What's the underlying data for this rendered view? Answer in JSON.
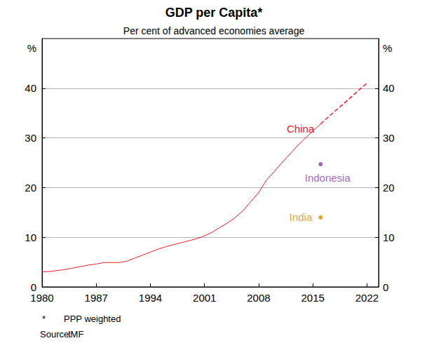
{
  "chart_data": {
    "type": "line",
    "title": "GDP per Capita*",
    "subtitle": "Per cent of advanced economies average",
    "y_label": "%",
    "y2_label": "%",
    "x": [
      1980,
      1981,
      1982,
      1983,
      1984,
      1985,
      1986,
      1987,
      1988,
      1989,
      1990,
      1991,
      1992,
      1993,
      1994,
      1995,
      1996,
      1997,
      1998,
      1999,
      2000,
      2001,
      2002,
      2003,
      2004,
      2005,
      2006,
      2007,
      2008,
      2009,
      2010,
      2011,
      2012,
      2013,
      2014,
      2015,
      2016,
      2017,
      2018,
      2019,
      2020,
      2021,
      2022
    ],
    "series": [
      {
        "name": "China",
        "type": "line",
        "line_style": "solid",
        "color": "#e3202c",
        "values": [
          3.0,
          3.1,
          3.3,
          3.5,
          3.8,
          4.1,
          4.4,
          4.6,
          4.9,
          4.9,
          4.9,
          5.2,
          5.8,
          6.4,
          7.0,
          7.6,
          8.1,
          8.5,
          8.9,
          9.3,
          9.7,
          10.3,
          11.0,
          12.0,
          12.9,
          14.0,
          15.4,
          17.2,
          19.0,
          21.5,
          23.2,
          25.0,
          26.7,
          28.4,
          29.9,
          31.4,
          32.8,
          null,
          null,
          null,
          null,
          null,
          null
        ]
      },
      {
        "name": "China",
        "type": "line",
        "line_style": "dashed",
        "color": "#e3202c",
        "values": [
          null,
          null,
          null,
          null,
          null,
          null,
          null,
          null,
          null,
          null,
          null,
          null,
          null,
          null,
          null,
          null,
          null,
          null,
          null,
          null,
          null,
          null,
          null,
          null,
          null,
          null,
          null,
          null,
          null,
          null,
          null,
          null,
          null,
          null,
          null,
          null,
          32.8,
          34.2,
          35.6,
          36.9,
          38.3,
          39.7,
          41.0
        ]
      },
      {
        "name": "Indonesia",
        "type": "scatter",
        "marker": "circle",
        "color": "#8e3fa8",
        "values": [
          null,
          null,
          null,
          null,
          null,
          null,
          null,
          null,
          null,
          null,
          null,
          null,
          null,
          null,
          null,
          null,
          null,
          null,
          null,
          null,
          null,
          null,
          null,
          null,
          null,
          null,
          null,
          null,
          null,
          null,
          null,
          null,
          null,
          null,
          null,
          null,
          24.7,
          null,
          null,
          null,
          null,
          null,
          null
        ]
      },
      {
        "name": "India",
        "type": "scatter",
        "marker": "circle",
        "color": "#d98a12",
        "values": [
          null,
          null,
          null,
          null,
          null,
          null,
          null,
          null,
          null,
          null,
          null,
          null,
          null,
          null,
          null,
          null,
          null,
          null,
          null,
          null,
          null,
          null,
          null,
          null,
          null,
          null,
          null,
          null,
          null,
          null,
          null,
          null,
          null,
          null,
          null,
          null,
          14.0,
          null,
          null,
          null,
          null,
          null,
          null
        ]
      }
    ],
    "xlim": [
      1980,
      2023.5
    ],
    "xticks": [
      1980,
      1987,
      1994,
      2001,
      2008,
      2015,
      2022
    ],
    "ylim": [
      0,
      50
    ],
    "yticks": [
      0,
      10,
      20,
      30,
      40
    ],
    "y2lim": [
      0,
      50
    ],
    "y2ticks": [
      0,
      10,
      20,
      30,
      40
    ],
    "grid": true,
    "footnotes": [
      {
        "marker": "*",
        "text": "PPP weighted"
      }
    ],
    "source": {
      "label": "Source:",
      "text": "IMF"
    }
  }
}
